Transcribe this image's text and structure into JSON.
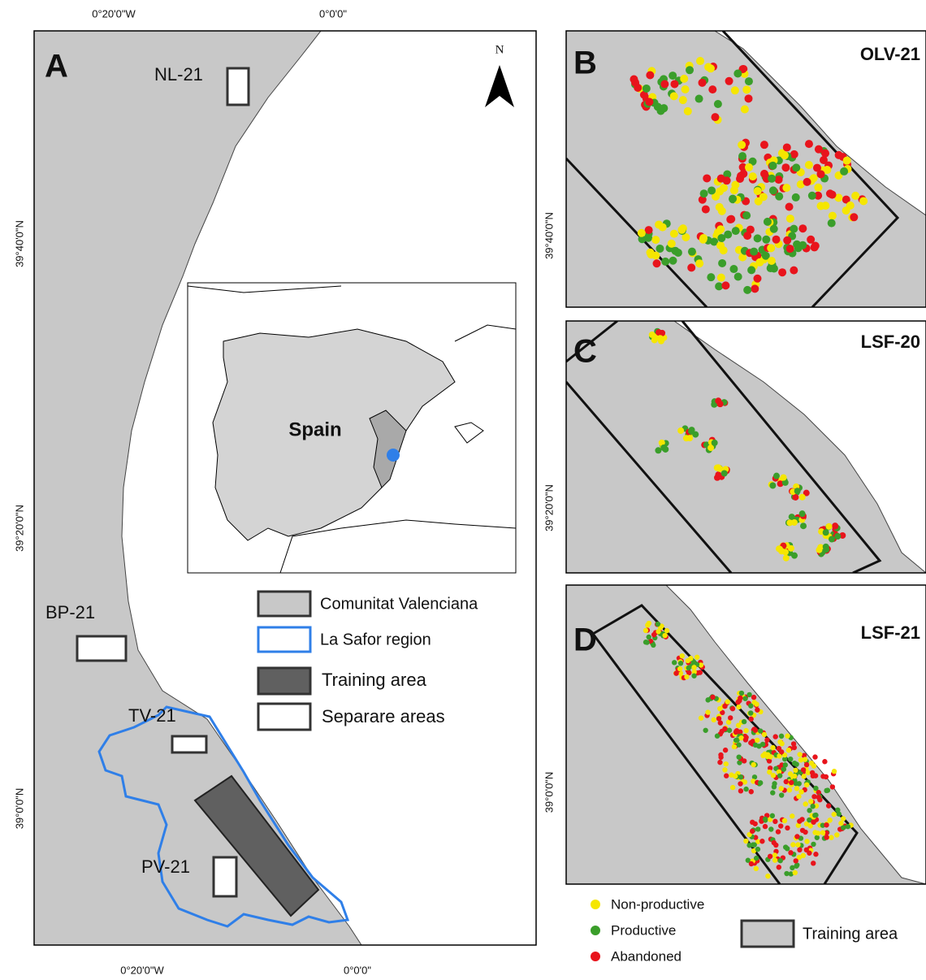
{
  "panel_a": {
    "label": "A",
    "top_axis": [
      "0°20'0\"W",
      "0°0'0\""
    ],
    "bottom_axis": [
      "0°20'0\"W",
      "0°0'0\""
    ],
    "left_axis": [
      "39°40'0\"N",
      "39°20'0\"N",
      "39°0'0\"N"
    ],
    "north": "N",
    "areas": [
      "NL-21",
      "BP-21",
      "TV-21",
      "PV-21"
    ],
    "inset": {
      "country": "Spain"
    },
    "legend": [
      "Comunitat Valenciana",
      "La Safor region",
      "Training area",
      "Separare areas"
    ]
  },
  "panels": [
    {
      "label": "B",
      "title": "OLV-21"
    },
    {
      "label": "C",
      "title": "LSF-20"
    },
    {
      "label": "D",
      "title": "LSF-21"
    }
  ],
  "right_axis": [
    "39°40'0\"N",
    "39°20'0\"N",
    "39°0'0\"N"
  ],
  "point_legend": {
    "items": [
      "Non-productive",
      "Productive",
      "Abandoned"
    ],
    "area": "Training area"
  }
}
